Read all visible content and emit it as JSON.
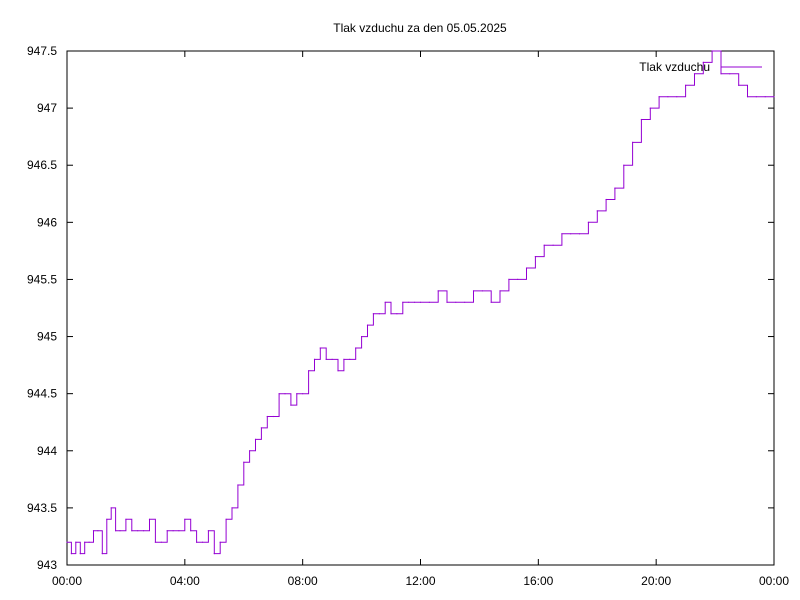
{
  "chart_data": {
    "type": "line",
    "title": "Tlak vzduchu za den 05.05.2025",
    "xlabel": "",
    "ylabel": "",
    "xlim": [
      0,
      24
    ],
    "ylim": [
      943,
      947.5
    ],
    "grid": false,
    "legend_position": "top-right",
    "x_tick_labels": [
      "00:00",
      "04:00",
      "08:00",
      "12:00",
      "16:00",
      "20:00",
      "00:00"
    ],
    "x_tick_values": [
      0,
      4,
      8,
      12,
      16,
      20,
      24
    ],
    "y_tick_labels": [
      "943",
      "943.5",
      "944",
      "944.5",
      "945",
      "945.5",
      "946",
      "946.5",
      "947",
      "947.5"
    ],
    "y_tick_values": [
      943,
      943.5,
      944,
      944.5,
      945,
      945.5,
      946,
      946.5,
      947,
      947.5
    ],
    "colors": {
      "series": "#9400d3",
      "axis": "#000000"
    },
    "series": [
      {
        "name": "Tlak vzduchu",
        "x": [
          0.0,
          0.15,
          0.3,
          0.45,
          0.6,
          0.75,
          0.9,
          1.05,
          1.2,
          1.35,
          1.5,
          1.65,
          1.8,
          2.0,
          2.2,
          2.4,
          2.6,
          2.8,
          3.0,
          3.2,
          3.4,
          3.6,
          3.8,
          4.0,
          4.2,
          4.4,
          4.6,
          4.8,
          5.0,
          5.2,
          5.4,
          5.6,
          5.8,
          6.0,
          6.2,
          6.4,
          6.6,
          6.8,
          7.0,
          7.2,
          7.4,
          7.6,
          7.8,
          8.0,
          8.2,
          8.4,
          8.6,
          8.8,
          9.0,
          9.2,
          9.4,
          9.6,
          9.8,
          10.0,
          10.2,
          10.4,
          10.6,
          10.8,
          11.0,
          11.2,
          11.4,
          11.6,
          11.8,
          12.0,
          12.3,
          12.6,
          12.9,
          13.2,
          13.5,
          13.8,
          14.1,
          14.4,
          14.7,
          15.0,
          15.3,
          15.6,
          15.9,
          16.2,
          16.5,
          16.8,
          17.1,
          17.4,
          17.7,
          18.0,
          18.3,
          18.6,
          18.9,
          19.2,
          19.5,
          19.8,
          20.1,
          20.4,
          20.7,
          21.0,
          21.3,
          21.6,
          21.9,
          22.2,
          22.5,
          22.8,
          23.1,
          23.4,
          23.7,
          24.0
        ],
        "values": [
          943.2,
          943.1,
          943.2,
          943.1,
          943.2,
          943.2,
          943.3,
          943.3,
          943.1,
          943.4,
          943.5,
          943.3,
          943.3,
          943.4,
          943.3,
          943.3,
          943.3,
          943.4,
          943.2,
          943.2,
          943.3,
          943.3,
          943.3,
          943.4,
          943.3,
          943.2,
          943.2,
          943.3,
          943.1,
          943.2,
          943.4,
          943.5,
          943.7,
          943.9,
          944.0,
          944.1,
          944.2,
          944.3,
          944.3,
          944.5,
          944.5,
          944.4,
          944.5,
          944.5,
          944.7,
          944.8,
          944.9,
          944.8,
          944.8,
          944.7,
          944.8,
          944.8,
          944.9,
          945.0,
          945.1,
          945.2,
          945.2,
          945.3,
          945.2,
          945.2,
          945.3,
          945.3,
          945.3,
          945.3,
          945.3,
          945.4,
          945.3,
          945.3,
          945.3,
          945.4,
          945.4,
          945.3,
          945.4,
          945.5,
          945.5,
          945.6,
          945.7,
          945.8,
          945.8,
          945.9,
          945.9,
          945.9,
          946.0,
          946.1,
          946.2,
          946.3,
          946.5,
          946.7,
          946.9,
          947.0,
          947.1,
          947.1,
          947.1,
          947.2,
          947.3,
          947.4,
          947.5,
          947.3,
          947.3,
          947.2,
          947.1,
          947.1,
          947.1,
          947.1
        ]
      }
    ]
  }
}
